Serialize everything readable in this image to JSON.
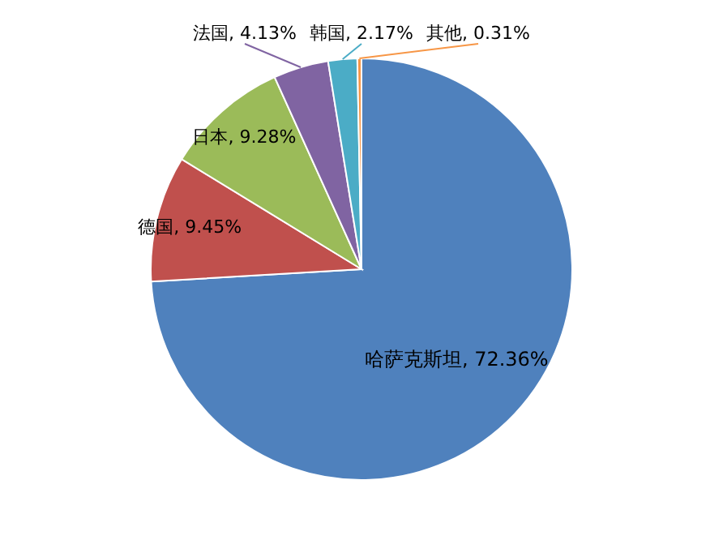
{
  "chart_data": {
    "type": "pie",
    "categories": [
      "哈萨克斯坦",
      "德国",
      "日本",
      "法国",
      "韩国",
      "其他"
    ],
    "values": [
      72.36,
      9.45,
      9.28,
      4.13,
      2.17,
      0.31
    ],
    "value_labels": [
      "72.36%",
      "9.45%",
      "9.28%",
      "4.13%",
      "2.17%",
      "0.31%"
    ],
    "colors": [
      "#4f81bd",
      "#c0504d",
      "#9bbb59",
      "#8064a2",
      "#4bacc6",
      "#f79646"
    ]
  }
}
